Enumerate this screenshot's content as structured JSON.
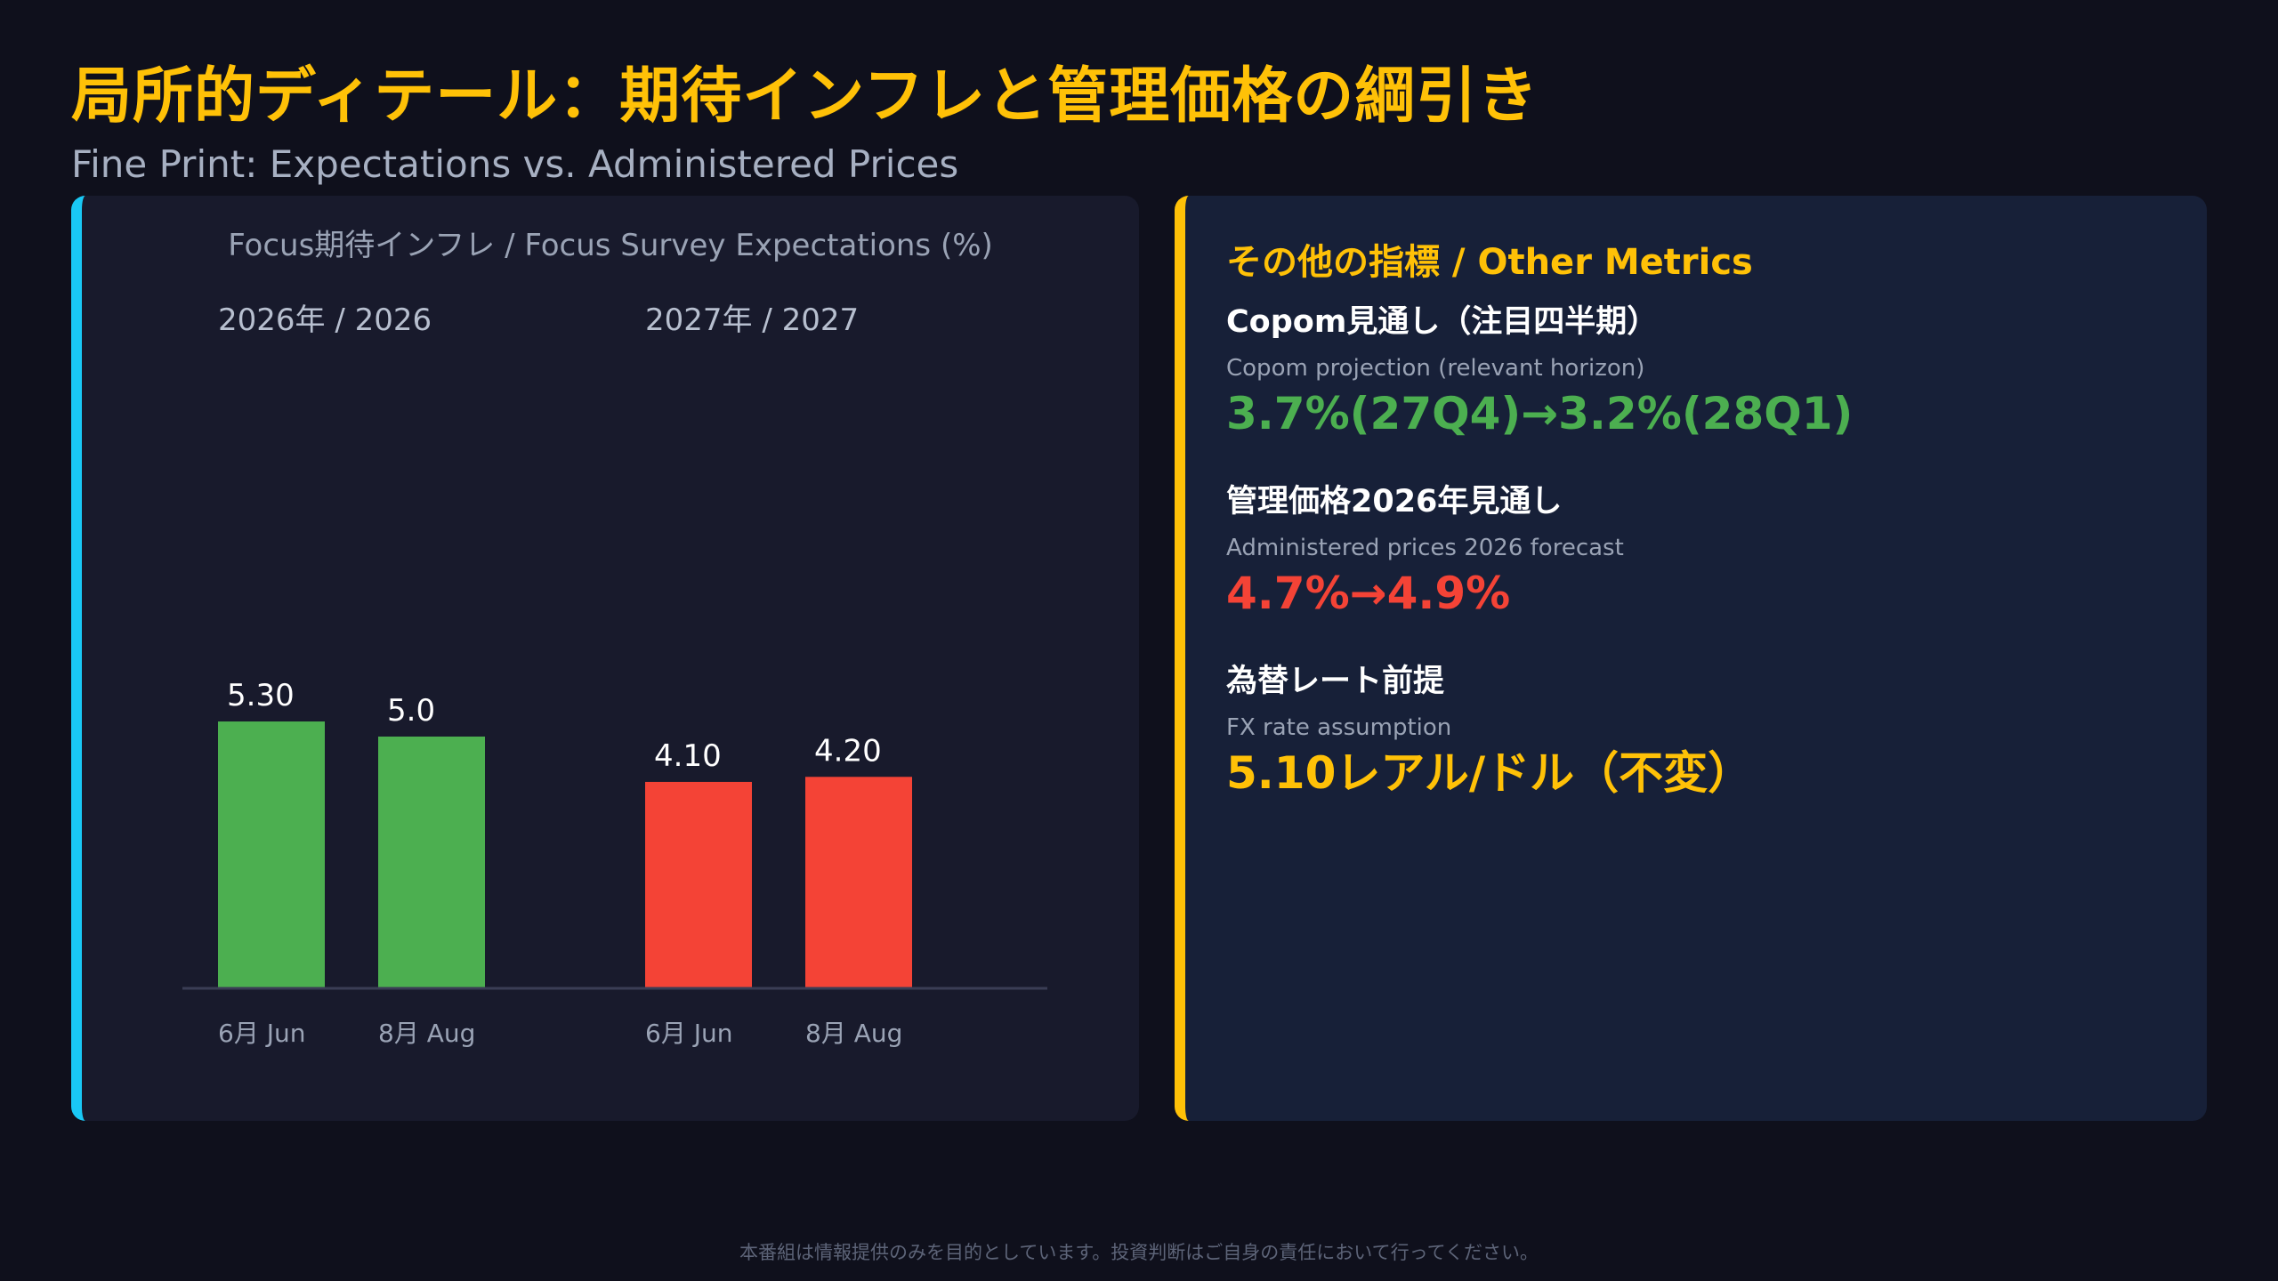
{
  "title": "局所的ディテール：期待インフレと管理価格の綱引き",
  "subtitle": "Fine Print: Expectations vs. Administered Prices",
  "chart_data": {
    "type": "bar",
    "title": "Focus期待インフレ / Focus Survey Expectations (%)",
    "groups": [
      {
        "label": "2026年 / 2026",
        "color": "#4caf50",
        "bars": [
          {
            "category": "6月 Jun",
            "value": 5.3,
            "value_label": "5.30"
          },
          {
            "category": "8月 Aug",
            "value": 5.0,
            "value_label": "5.0"
          }
        ]
      },
      {
        "label": "2027年 / 2027",
        "color": "#f44336",
        "bars": [
          {
            "category": "6月 Jun",
            "value": 4.1,
            "value_label": "4.10"
          },
          {
            "category": "8月 Aug",
            "value": 4.2,
            "value_label": "4.20"
          }
        ]
      }
    ]
  },
  "metrics": {
    "heading": "その他の指標 / Other Metrics",
    "items": [
      {
        "label": "Copom見通し（注目四半期）",
        "sublabel": "Copom projection (relevant horizon)",
        "value": "3.7%(27Q4)→3.2%(28Q1)",
        "color": "#4caf50"
      },
      {
        "label": "管理価格2026年見通し",
        "sublabel": "Administered prices 2026 forecast",
        "value": "4.7%→4.9%",
        "color": "#f44336"
      },
      {
        "label": "為替レート前提",
        "sublabel": "FX rate assumption",
        "value": "5.10レアル/ドル（不変）",
        "color": "#ffc107"
      }
    ]
  },
  "disclaimer": "本番組は情報提供のみを目的としています。投資判断はご自身の責任において行ってください。"
}
